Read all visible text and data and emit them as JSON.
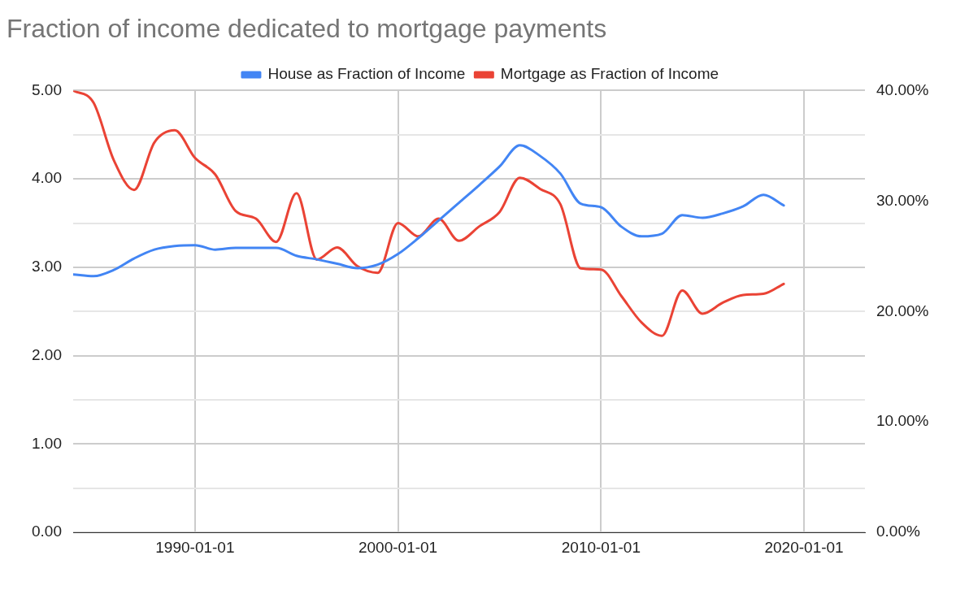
{
  "chart_data": {
    "type": "line",
    "title": "Fraction of income dedicated to mortgage payments",
    "x": [
      "1984",
      "1985",
      "1986",
      "1987",
      "1988",
      "1989",
      "1990",
      "1991",
      "1992",
      "1993",
      "1994",
      "1995",
      "1996",
      "1997",
      "1998",
      "1999",
      "2000",
      "2001",
      "2002",
      "2003",
      "2004",
      "2005",
      "2006",
      "2007",
      "2008",
      "2009",
      "2010",
      "2011",
      "2012",
      "2013",
      "2014",
      "2015",
      "2016",
      "2017",
      "2018",
      "2019"
    ],
    "series": [
      {
        "name": "House as Fraction of Income",
        "color": "#4285f4",
        "values": [
          2.92,
          2.9,
          2.97,
          3.1,
          3.2,
          3.24,
          3.25,
          3.2,
          3.22,
          3.22,
          3.22,
          3.13,
          3.09,
          3.04,
          2.99,
          3.03,
          3.15,
          3.33,
          3.53,
          3.73,
          3.93,
          4.14,
          4.38,
          4.26,
          4.06,
          3.72,
          3.68,
          3.46,
          3.35,
          3.38,
          3.59,
          3.56,
          3.61,
          3.69,
          3.82,
          3.7
        ]
      },
      {
        "name": "Mortgage as Fraction of Income",
        "color": "#ea4335",
        "axis": "y2",
        "values": [
          40.0,
          38.9,
          33.7,
          31.0,
          35.3,
          36.4,
          33.9,
          32.4,
          29.1,
          28.4,
          26.3,
          30.7,
          24.7,
          25.8,
          24.1,
          23.5,
          28.0,
          26.8,
          28.4,
          26.4,
          27.7,
          29.0,
          32.1,
          31.1,
          29.7,
          23.9,
          23.8,
          21.4,
          19.0,
          17.8,
          21.9,
          19.8,
          20.8,
          21.5,
          21.6,
          22.5
        ]
      }
    ],
    "xlim": [
      "1984-01-01",
      "2023-01-01"
    ],
    "xticks": [
      {
        "value": "1990-01-01",
        "label": "1990-01-01"
      },
      {
        "value": "2000-01-01",
        "label": "2000-01-01"
      },
      {
        "value": "2010-01-01",
        "label": "2010-01-01"
      },
      {
        "value": "2020-01-01",
        "label": "2020-01-01"
      }
    ],
    "ylim": [
      0,
      5
    ],
    "yticks": [
      {
        "value": 0,
        "label": "0.00"
      },
      {
        "value": 0.5,
        "label": null
      },
      {
        "value": 1,
        "label": "1.00"
      },
      {
        "value": 1.5,
        "label": null
      },
      {
        "value": 2,
        "label": "2.00"
      },
      {
        "value": 2.5,
        "label": null
      },
      {
        "value": 3,
        "label": "3.00"
      },
      {
        "value": 3.5,
        "label": null
      },
      {
        "value": 4,
        "label": "4.00"
      },
      {
        "value": 4.5,
        "label": null
      },
      {
        "value": 5,
        "label": "5.00"
      }
    ],
    "y2lim": [
      0,
      40
    ],
    "y2ticks": [
      {
        "value": 0,
        "label": "0.00%"
      },
      {
        "value": 10,
        "label": "10.00%"
      },
      {
        "value": 20,
        "label": "20.00%"
      },
      {
        "value": 30,
        "label": "30.00%"
      },
      {
        "value": 40,
        "label": "40.00%"
      }
    ],
    "grid": true,
    "legend": "top",
    "marker": "none",
    "line_style": "solid"
  }
}
